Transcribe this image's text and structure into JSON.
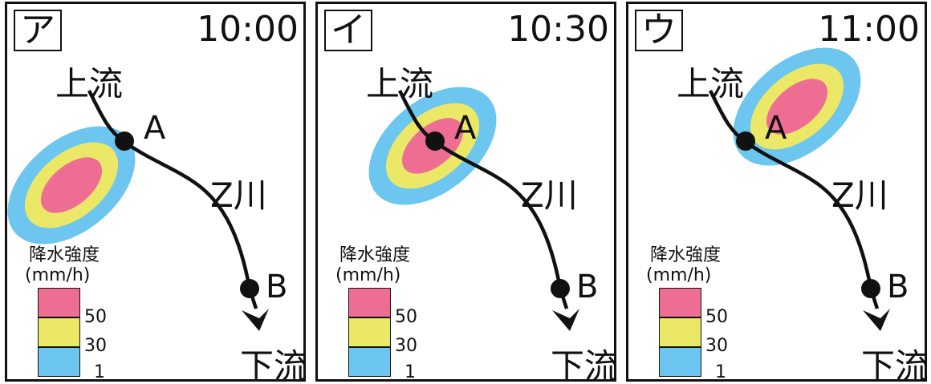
{
  "colors": {
    "heavy": "#ee6e93",
    "moderate": "#ece867",
    "light": "#6cc6ef",
    "line": "#111111"
  },
  "panels": [
    {
      "label": "ア",
      "time": "10:00",
      "upstream": "上流",
      "downstream": "下流",
      "river": "Z川",
      "point_a": "A",
      "point_b": "B",
      "legend": {
        "title": "降水強度",
        "unit": "(mm/h)",
        "levels": [
          "50",
          "30",
          "1"
        ]
      }
    },
    {
      "label": "イ",
      "time": "10:30",
      "upstream": "上流",
      "downstream": "下流",
      "river": "Z川",
      "point_a": "A",
      "point_b": "B",
      "legend": {
        "title": "降水強度",
        "unit": "(mm/h)",
        "levels": [
          "50",
          "30",
          "1"
        ]
      }
    },
    {
      "label": "ウ",
      "time": "11:00",
      "upstream": "上流",
      "downstream": "下流",
      "river": "Z川",
      "point_a": "A",
      "point_b": "B",
      "legend": {
        "title": "降水強度",
        "unit": "(mm/h)",
        "levels": [
          "50",
          "30",
          "1"
        ]
      }
    }
  ]
}
